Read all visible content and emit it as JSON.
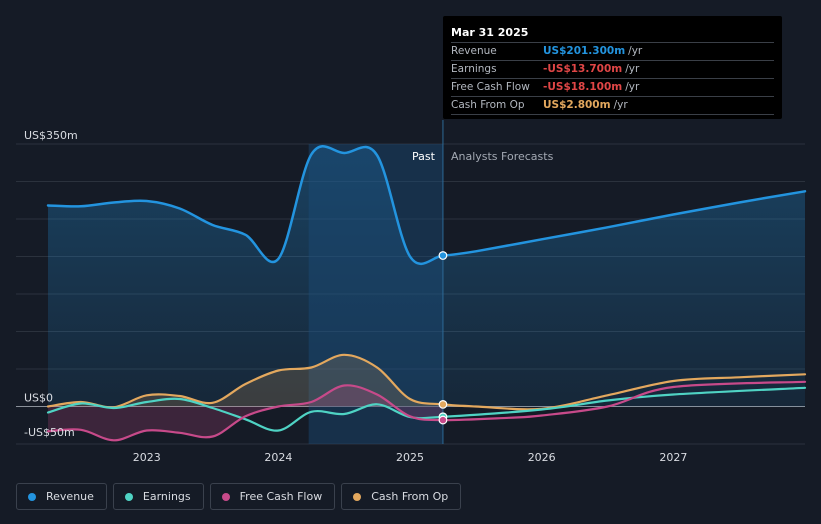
{
  "chart_data": {
    "type": "line",
    "ylim": [
      -50,
      350
    ],
    "xlim": [
      2022.25,
      2028.0
    ],
    "y_ticks": [
      {
        "value": 350,
        "label": "US$350m"
      },
      {
        "value": 0,
        "label": "US$0"
      },
      {
        "value": -50,
        "label": "-US$50m"
      }
    ],
    "x_ticks": [
      {
        "value": 2023,
        "label": "2023"
      },
      {
        "value": 2024,
        "label": "2024"
      },
      {
        "value": 2025,
        "label": "2025"
      },
      {
        "value": 2026,
        "label": "2026"
      },
      {
        "value": 2027,
        "label": "2027"
      }
    ],
    "past_label": "Past",
    "forecast_label": "Analysts Forecasts",
    "divider_x": 2025.25,
    "series": [
      {
        "name": "Revenue",
        "key": "revenue",
        "color": "#2394df",
        "points": [
          [
            2022.25,
            268
          ],
          [
            2022.5,
            267
          ],
          [
            2022.75,
            272
          ],
          [
            2023.0,
            274
          ],
          [
            2023.25,
            264
          ],
          [
            2023.5,
            242
          ],
          [
            2023.75,
            229
          ],
          [
            2024.0,
            197
          ],
          [
            2024.25,
            336
          ],
          [
            2024.5,
            338
          ],
          [
            2024.75,
            335
          ],
          [
            2025.0,
            200
          ],
          [
            2025.25,
            201.3
          ],
          [
            2025.5,
            207
          ],
          [
            2026.0,
            223
          ],
          [
            2026.5,
            239
          ],
          [
            2027.0,
            256
          ],
          [
            2027.5,
            272
          ],
          [
            2028.0,
            287
          ]
        ],
        "area": true
      },
      {
        "name": "Earnings",
        "key": "earnings",
        "color": "#4fd3c4",
        "points": [
          [
            2022.25,
            -8
          ],
          [
            2022.5,
            4
          ],
          [
            2022.75,
            -2
          ],
          [
            2023.0,
            6
          ],
          [
            2023.25,
            10
          ],
          [
            2023.5,
            -2
          ],
          [
            2023.75,
            -17
          ],
          [
            2024.0,
            -32
          ],
          [
            2024.25,
            -7
          ],
          [
            2024.5,
            -10
          ],
          [
            2024.75,
            3
          ],
          [
            2025.0,
            -14
          ],
          [
            2025.25,
            -13.7
          ],
          [
            2026.0,
            -4
          ],
          [
            2026.5,
            8
          ],
          [
            2027.0,
            16
          ],
          [
            2028.0,
            25
          ]
        ]
      },
      {
        "name": "Free Cash Flow",
        "key": "fcf",
        "color": "#c74a8a",
        "points": [
          [
            2022.25,
            -33
          ],
          [
            2022.5,
            -31
          ],
          [
            2022.75,
            -45
          ],
          [
            2023.0,
            -32
          ],
          [
            2023.25,
            -35
          ],
          [
            2023.5,
            -40
          ],
          [
            2023.75,
            -13
          ],
          [
            2024.0,
            0
          ],
          [
            2024.25,
            6
          ],
          [
            2024.5,
            28
          ],
          [
            2024.75,
            16
          ],
          [
            2025.0,
            -13
          ],
          [
            2025.25,
            -18.1
          ],
          [
            2025.75,
            -15
          ],
          [
            2026.0,
            -12
          ],
          [
            2026.5,
            0
          ],
          [
            2027.0,
            26
          ],
          [
            2028.0,
            33
          ]
        ],
        "area": true
      },
      {
        "name": "Cash From Op",
        "key": "cfo",
        "color": "#e3a85e",
        "points": [
          [
            2022.25,
            0
          ],
          [
            2022.5,
            6
          ],
          [
            2022.75,
            -1
          ],
          [
            2023.0,
            15
          ],
          [
            2023.25,
            14
          ],
          [
            2023.5,
            5
          ],
          [
            2023.75,
            30
          ],
          [
            2024.0,
            48
          ],
          [
            2024.25,
            52
          ],
          [
            2024.5,
            69
          ],
          [
            2024.75,
            52
          ],
          [
            2025.0,
            10
          ],
          [
            2025.25,
            2.8
          ],
          [
            2025.5,
            0
          ],
          [
            2026.0,
            -3
          ],
          [
            2026.5,
            15
          ],
          [
            2027.0,
            34
          ],
          [
            2027.5,
            39
          ],
          [
            2028.0,
            43
          ]
        ],
        "area": true
      }
    ]
  },
  "tooltip": {
    "date": "Mar 31 2025",
    "rows": [
      {
        "label": "Revenue",
        "value": "US$201.300m",
        "unit": "/yr",
        "color": "#2394df"
      },
      {
        "label": "Earnings",
        "value": "-US$13.700m",
        "unit": "/yr",
        "color": "#e04646"
      },
      {
        "label": "Free Cash Flow",
        "value": "-US$18.100m",
        "unit": "/yr",
        "color": "#e04646"
      },
      {
        "label": "Cash From Op",
        "value": "US$2.800m",
        "unit": "/yr",
        "color": "#e3a85e"
      }
    ]
  },
  "legend": [
    {
      "label": "Revenue",
      "color": "#2394df"
    },
    {
      "label": "Earnings",
      "color": "#4fd3c4"
    },
    {
      "label": "Free Cash Flow",
      "color": "#c74a8a"
    },
    {
      "label": "Cash From Op",
      "color": "#e3a85e"
    }
  ]
}
